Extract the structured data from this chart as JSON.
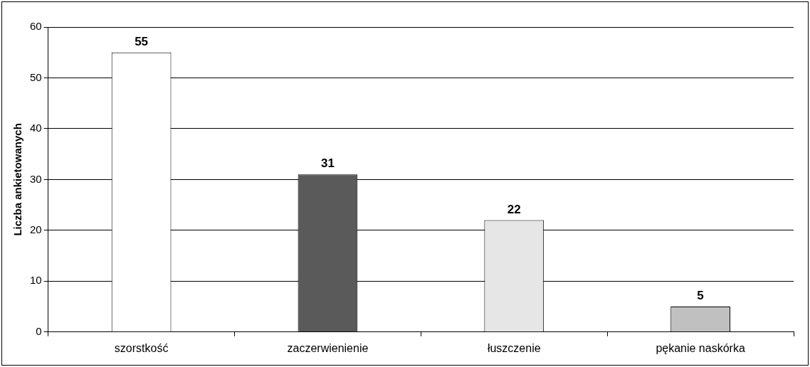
{
  "chart_data": {
    "type": "bar",
    "ylabel": "Liczba ankietowanych",
    "categories": [
      "szorstkość",
      "zaczerwienienie",
      "łuszczenie",
      "pękanie naskórka"
    ],
    "values": [
      55,
      31,
      22,
      5
    ],
    "colors": [
      "#ffffff",
      "#5a5a5a",
      "#e6e6e6",
      "#c0c0c0"
    ],
    "ylim": [
      0,
      60
    ],
    "yticks": [
      0,
      10,
      20,
      30,
      40,
      50,
      60
    ],
    "grid": "y",
    "data_labels": true,
    "legend": false
  }
}
